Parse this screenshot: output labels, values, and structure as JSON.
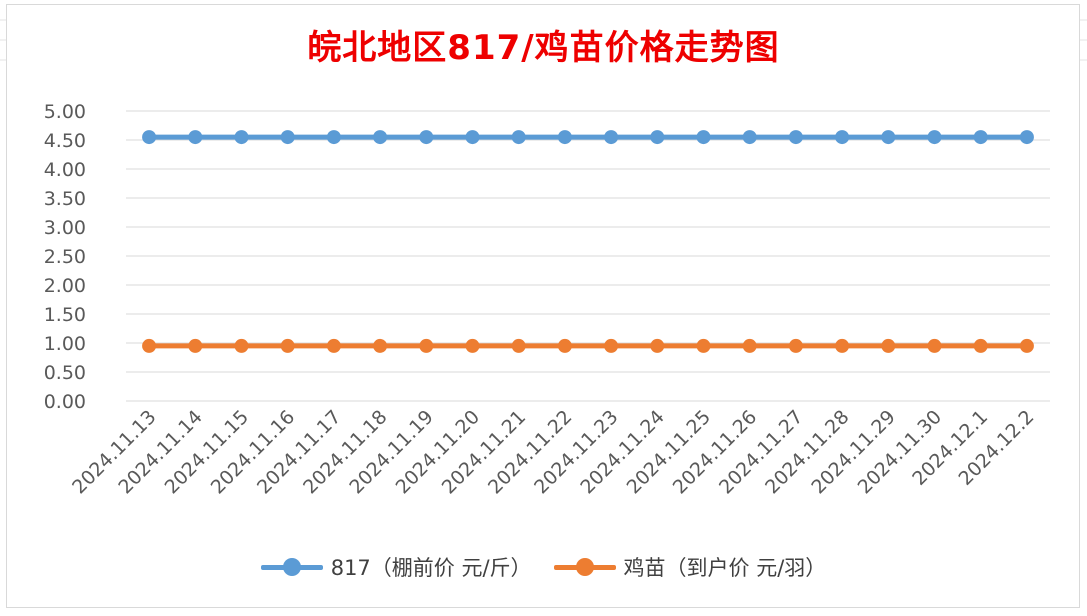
{
  "chart_data": {
    "type": "line",
    "title": "皖北地区817/鸡苗价格走势图",
    "categories": [
      "2024.11.13",
      "2024.11.14",
      "2024.11.15",
      "2024.11.16",
      "2024.11.17",
      "2024.11.18",
      "2024.11.19",
      "2024.11.20",
      "2024.11.21",
      "2024.11.22",
      "2024.11.23",
      "2024.11.24",
      "2024.11.25",
      "2024.11.26",
      "2024.11.27",
      "2024.11.28",
      "2024.11.29",
      "2024.11.30",
      "2024.12.1",
      "2024.12.2"
    ],
    "series": [
      {
        "name": "817（棚前价 元/斤）",
        "color": "#5b9bd5",
        "values": [
          4.55,
          4.55,
          4.55,
          4.55,
          4.55,
          4.55,
          4.55,
          4.55,
          4.55,
          4.55,
          4.55,
          4.55,
          4.55,
          4.55,
          4.55,
          4.55,
          4.55,
          4.55,
          4.55,
          4.55
        ]
      },
      {
        "name": "鸡苗（到户价 元/羽）",
        "color": "#ed7d31",
        "values": [
          0.95,
          0.95,
          0.95,
          0.95,
          0.95,
          0.95,
          0.95,
          0.95,
          0.95,
          0.95,
          0.95,
          0.95,
          0.95,
          0.95,
          0.95,
          0.95,
          0.95,
          0.95,
          0.95,
          0.95
        ]
      }
    ],
    "yticks": [
      "0.00",
      "0.50",
      "1.00",
      "1.50",
      "2.00",
      "2.50",
      "3.00",
      "3.50",
      "4.00",
      "4.50",
      "5.00"
    ],
    "ylim": [
      0,
      5
    ],
    "xlabel": "",
    "ylabel": "",
    "grid": true,
    "legend": "bottom",
    "title_color": "#ee0000"
  }
}
